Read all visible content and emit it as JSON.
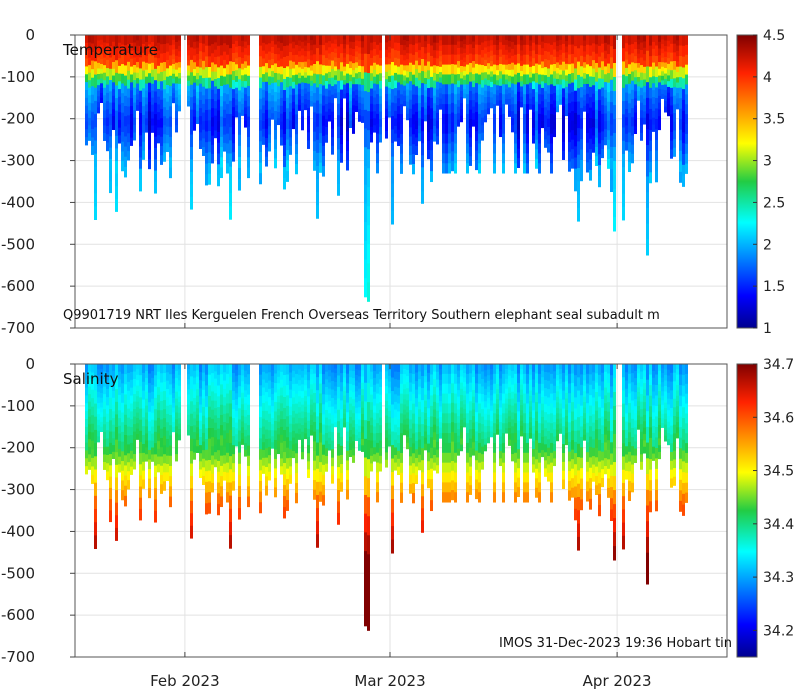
{
  "chart_data": [
    {
      "type": "heatmap",
      "title": "Temperature",
      "annotation": "Q9901719 NRT Iles Kerguelen French Overseas Territory Southern elephant seal subadult m",
      "ylabel": "",
      "ylim": [
        -700,
        0
      ],
      "yticks": [
        0,
        -100,
        -200,
        -300,
        -400,
        -500,
        -600,
        -700
      ],
      "x_range": [
        "2023-01-17",
        "2023-04-16"
      ],
      "xticks": [
        {
          "date": "2023-02-01",
          "label": "Feb 2023"
        },
        {
          "date": "2023-03-01",
          "label": "Mar 2023"
        },
        {
          "date": "2023-04-01",
          "label": "Apr 2023"
        }
      ],
      "grid": true,
      "colorbar": {
        "min": 1,
        "max": 4.5,
        "ticks": [
          1,
          1.5,
          2,
          2.5,
          3,
          3.5,
          4,
          4.5
        ]
      },
      "profile_depth_range": [
        -660,
        -95
      ],
      "surface_value_range": [
        3.8,
        4.3
      ],
      "deep_value_range": [
        1.2,
        2.3
      ]
    },
    {
      "type": "heatmap",
      "title": "Salinity",
      "annotation": "IMOS 31-Dec-2023 19:36 Hobart tin",
      "ylabel": "",
      "ylim": [
        -700,
        0
      ],
      "yticks": [
        0,
        -100,
        -200,
        -300,
        -400,
        -500,
        -600,
        -700
      ],
      "x_range": [
        "2023-01-17",
        "2023-04-16"
      ],
      "xticks": [
        {
          "date": "2023-02-01",
          "label": "Feb 2023"
        },
        {
          "date": "2023-03-01",
          "label": "Mar 2023"
        },
        {
          "date": "2023-04-01",
          "label": "Apr 2023"
        }
      ],
      "grid": true,
      "colorbar": {
        "min": 34.15,
        "max": 34.7,
        "ticks": [
          34.2,
          34.3,
          34.4,
          34.5,
          34.6,
          34.7
        ]
      },
      "surface_value_range": [
        34.3,
        34.42
      ],
      "deep_value_range": [
        34.62,
        34.7
      ]
    }
  ]
}
